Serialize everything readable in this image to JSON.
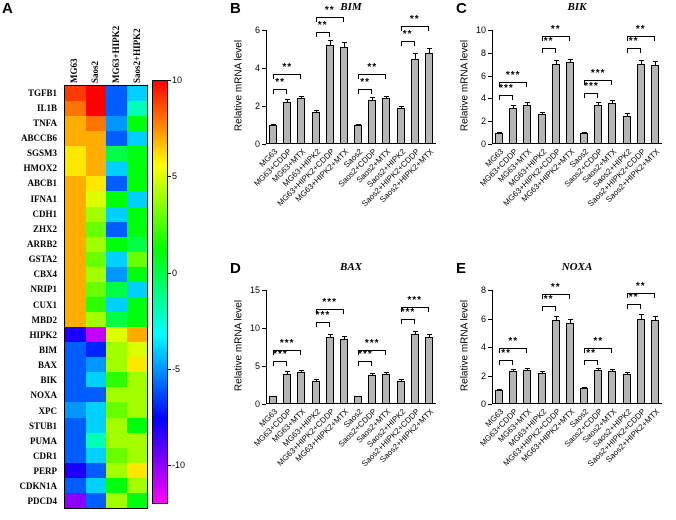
{
  "colors": {
    "bar_fill": "#b5b5b5",
    "axis": "#000000",
    "background": "#ffffff"
  },
  "chart_data": [
    {
      "id": "panel-A",
      "panel": "A",
      "letter": "A",
      "type": "heatmap",
      "columns": [
        "MG63",
        "Saos2",
        "MG63+HIPK2",
        "Saos2+HIPK2"
      ],
      "rows": [
        "TGFB1",
        "IL1B",
        "TNFA",
        "ABCCB6",
        "SGSM3",
        "HMOX2",
        "ABCB1",
        "IFNA1",
        "CDH1",
        "ZHX2",
        "ARRB2",
        "GSTA2",
        "CBX4",
        "NRIP1",
        "CUX1",
        "MBD2",
        "HIPK2",
        "BIM",
        "BAX",
        "BIK",
        "NOXA",
        "XPC",
        "STUB1",
        "PUMA",
        "CDR1",
        "PERP",
        "CDKN1A",
        "PDCD4"
      ],
      "values": [
        [
          9,
          10,
          -6,
          -4
        ],
        [
          8,
          10,
          -6,
          -2
        ],
        [
          7,
          8,
          -5,
          1
        ],
        [
          7,
          7,
          -6,
          -4
        ],
        [
          6,
          7,
          0,
          1
        ],
        [
          6,
          7,
          -4,
          1
        ],
        [
          7,
          6,
          -6,
          1
        ],
        [
          7,
          5,
          1,
          -4
        ],
        [
          7,
          4,
          -4,
          1
        ],
        [
          7,
          3,
          -6,
          1
        ],
        [
          7,
          4,
          1,
          0
        ],
        [
          7,
          3,
          -4,
          3
        ],
        [
          7,
          4,
          -5,
          1
        ],
        [
          7,
          3,
          0,
          -4
        ],
        [
          7,
          2,
          -4,
          1
        ],
        [
          7,
          4,
          0,
          1
        ],
        [
          -8,
          -11,
          5,
          7
        ],
        [
          -6,
          -7,
          4,
          5
        ],
        [
          -6,
          -5,
          4,
          6
        ],
        [
          -6,
          -4,
          2,
          4
        ],
        [
          -6,
          -6,
          4,
          4
        ],
        [
          -5,
          -4,
          3,
          4
        ],
        [
          -6,
          -4,
          4,
          1
        ],
        [
          -6,
          -2,
          4,
          4
        ],
        [
          -6,
          -4,
          3,
          4
        ],
        [
          -8,
          -6,
          4,
          6
        ],
        [
          -6,
          -4,
          1,
          4
        ],
        [
          -10,
          -6,
          4,
          1
        ]
      ],
      "scale": {
        "min": -12,
        "max": 10,
        "ticks": [
          10,
          5,
          0,
          -5,
          -10
        ]
      }
    },
    {
      "id": "panel-B",
      "panel": "B",
      "letter": "B",
      "type": "bar",
      "title": "BIM",
      "ylabel": "Relative mRNA level",
      "ylim": [
        0,
        6
      ],
      "yticks": [
        0,
        2,
        4,
        6
      ],
      "categories": [
        "MG63",
        "MG63+CDDP",
        "MG63+MTX",
        "MG63+HIPK2",
        "MG63+HIPK2+CDDP",
        "MG63+HIPK2+MTX",
        "Saos2",
        "Saos2+CDDP",
        "Saos2+MTX",
        "Saos2+HIPK2",
        "Saos2+HIPK2+CDDP",
        "Saos2+HIPK2+MTX"
      ],
      "values": [
        1,
        2.2,
        2.4,
        1.7,
        5.2,
        5.1,
        1,
        2.3,
        2.4,
        1.9,
        4.5,
        4.8
      ],
      "errors": [
        0.05,
        0.15,
        0.15,
        0.1,
        0.25,
        0.25,
        0.05,
        0.15,
        0.15,
        0.1,
        0.3,
        0.25
      ],
      "sig": [
        {
          "i1": 0,
          "i2": 1,
          "y": 2.9,
          "label": "**"
        },
        {
          "i1": 0,
          "i2": 2,
          "y": 3.7,
          "label": "**"
        },
        {
          "i1": 3,
          "i2": 4,
          "y": 5.9,
          "label": "**"
        },
        {
          "i1": 3,
          "i2": 5,
          "y": 6.7,
          "label": "**"
        },
        {
          "i1": 6,
          "i2": 7,
          "y": 2.9,
          "label": "**"
        },
        {
          "i1": 6,
          "i2": 8,
          "y": 3.7,
          "label": "**"
        },
        {
          "i1": 9,
          "i2": 10,
          "y": 5.4,
          "label": "**"
        },
        {
          "i1": 9,
          "i2": 11,
          "y": 6.2,
          "label": "**"
        }
      ]
    },
    {
      "id": "panel-C",
      "panel": "C",
      "letter": "C",
      "type": "bar",
      "title": "BIK",
      "ylabel": "Relative mRNA level",
      "ylim": [
        0,
        10
      ],
      "yticks": [
        0,
        2,
        4,
        6,
        8,
        10
      ],
      "categories": [
        "MG63",
        "MG63+CDDP",
        "MG63+MTX",
        "MG63+HIPK2",
        "MG63+HIPK2+CDDP",
        "MG63+HIPK2+MTX",
        "Saos2",
        "Saos2+CDDP",
        "Saos2+MTX",
        "Saos2+HIPK2",
        "Saos2+HIPK2+CDDP",
        "Saos2+HIPK2+MTX"
      ],
      "values": [
        1,
        3.2,
        3.4,
        2.6,
        7.0,
        7.2,
        1,
        3.4,
        3.6,
        2.5,
        7.0,
        6.9
      ],
      "errors": [
        0.08,
        0.2,
        0.25,
        0.2,
        0.35,
        0.3,
        0.08,
        0.25,
        0.25,
        0.2,
        0.4,
        0.35
      ],
      "sig": [
        {
          "i1": 0,
          "i2": 1,
          "y": 4.3,
          "label": "***"
        },
        {
          "i1": 0,
          "i2": 2,
          "y": 5.4,
          "label": "***"
        },
        {
          "i1": 3,
          "i2": 4,
          "y": 8.4,
          "label": "**"
        },
        {
          "i1": 3,
          "i2": 5,
          "y": 9.5,
          "label": "**"
        },
        {
          "i1": 6,
          "i2": 7,
          "y": 4.5,
          "label": "***"
        },
        {
          "i1": 6,
          "i2": 8,
          "y": 5.6,
          "label": "***"
        },
        {
          "i1": 9,
          "i2": 10,
          "y": 8.4,
          "label": "**"
        },
        {
          "i1": 9,
          "i2": 11,
          "y": 9.5,
          "label": "**"
        }
      ]
    },
    {
      "id": "panel-D",
      "panel": "D",
      "letter": "D",
      "type": "bar",
      "title": "BAX",
      "ylabel": "Relative mRNA level",
      "ylim": [
        0,
        15
      ],
      "yticks": [
        0,
        5,
        10,
        15
      ],
      "categories": [
        "MG63",
        "MG63+CDDP",
        "MG63+MTX",
        "MG63+HIPK2",
        "MG63+HIPK2+CDDP",
        "MG63+HIPK2+MTX",
        "Saos2",
        "Saos2+CDDP",
        "Saos2+MTX",
        "Saos2+HIPK2",
        "Saos2+HIPK2+CDDP",
        "Saos2+HIPK2+MTX"
      ],
      "values": [
        1,
        4.0,
        4.2,
        3.0,
        8.8,
        8.5,
        1,
        3.8,
        3.9,
        3.0,
        9.2,
        8.8
      ],
      "errors": [
        0.1,
        0.3,
        0.3,
        0.25,
        0.4,
        0.4,
        0.1,
        0.3,
        0.3,
        0.25,
        0.45,
        0.4
      ],
      "sig": [
        {
          "i1": 0,
          "i2": 1,
          "y": 5.6,
          "label": "***"
        },
        {
          "i1": 0,
          "i2": 2,
          "y": 7.1,
          "label": "***"
        },
        {
          "i1": 3,
          "i2": 4,
          "y": 10.8,
          "label": "***"
        },
        {
          "i1": 3,
          "i2": 5,
          "y": 12.5,
          "label": "***"
        },
        {
          "i1": 6,
          "i2": 7,
          "y": 5.6,
          "label": "***"
        },
        {
          "i1": 6,
          "i2": 8,
          "y": 7.1,
          "label": "***"
        },
        {
          "i1": 9,
          "i2": 10,
          "y": 11.2,
          "label": "***"
        },
        {
          "i1": 9,
          "i2": 11,
          "y": 12.8,
          "label": "***"
        }
      ]
    },
    {
      "id": "panel-E",
      "panel": "E",
      "letter": "E",
      "type": "bar",
      "title": "NOXA",
      "ylabel": "Relative mRNA level",
      "ylim": [
        0,
        8
      ],
      "yticks": [
        0,
        2,
        4,
        6,
        8
      ],
      "categories": [
        "MG63",
        "MG63+CDDP",
        "MG63+MTX",
        "MG63+HIPK2",
        "MG63+HIPK2+CDDP",
        "MG63+HIPK2+MTX",
        "Saos2",
        "Saos2+CDDP",
        "Saos2+MTX",
        "Saos2+HIPK2",
        "Saos2+HIPK2+CDDP",
        "Saos2+HIPK2+MTX"
      ],
      "values": [
        1,
        2.3,
        2.4,
        2.2,
        5.9,
        5.7,
        1.1,
        2.4,
        2.3,
        2.1,
        6.0,
        5.9
      ],
      "errors": [
        0.08,
        0.15,
        0.15,
        0.15,
        0.3,
        0.25,
        0.1,
        0.15,
        0.15,
        0.15,
        0.3,
        0.3
      ],
      "sig": [
        {
          "i1": 0,
          "i2": 1,
          "y": 3.1,
          "label": "**"
        },
        {
          "i1": 0,
          "i2": 2,
          "y": 3.9,
          "label": "**"
        },
        {
          "i1": 3,
          "i2": 4,
          "y": 6.9,
          "label": "**"
        },
        {
          "i1": 3,
          "i2": 5,
          "y": 7.7,
          "label": "**"
        },
        {
          "i1": 6,
          "i2": 7,
          "y": 3.1,
          "label": "**"
        },
        {
          "i1": 6,
          "i2": 8,
          "y": 3.9,
          "label": "**"
        },
        {
          "i1": 9,
          "i2": 10,
          "y": 7.0,
          "label": "**"
        },
        {
          "i1": 9,
          "i2": 11,
          "y": 7.8,
          "label": "**"
        }
      ]
    }
  ]
}
